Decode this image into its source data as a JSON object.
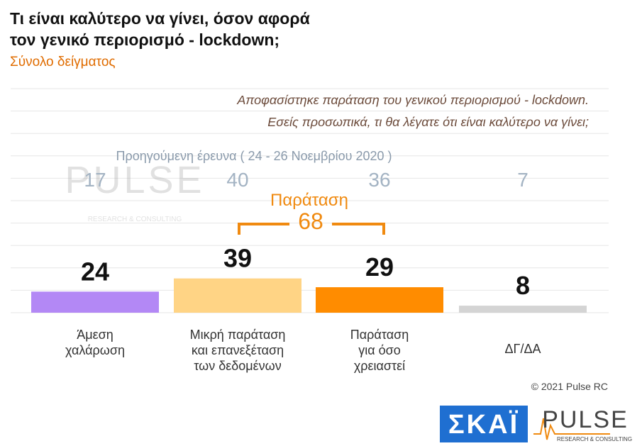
{
  "chart_data": {
    "type": "bar",
    "title": [
      "Τι είναι καλύτερο να γίνει, όσον αφορά",
      "τον γενικό περιορισμό - lockdown;"
    ],
    "subtitle": "Σύνολο δείγματος",
    "question": [
      "Αποφασίστηκε παράταση του γενικού περιορισμού - lockdown.",
      "Εσείς προσωπικά, τι θα λέγατε ότι είναι καλύτερο να γίνει;"
    ],
    "categories": [
      "Άμεση\nχαλάρωση",
      "Μικρή παράταση\nκαι επανεξέταση\nτων δεδομένων",
      "Παράταση\nγια όσο\nχρειαστεί",
      "ΔΓ/ΔΑ"
    ],
    "values": [
      24,
      39,
      29,
      8
    ],
    "colors": [
      "#b388f5",
      "#ffd485",
      "#ff8c00",
      "#d4d4d4"
    ],
    "ylim": [
      0,
      255
    ],
    "previous_label": "Προηγούμενη έρευνα  ( 24 - 26  Νοεμβρίου  2020 )",
    "previous_values": [
      17,
      40,
      36,
      7
    ],
    "bracket": {
      "label": "Παράταση",
      "value": 68
    },
    "copyright": "© 2021 Pulse RC",
    "logos": {
      "skai": "ΣΚΑΪ",
      "pulse": "PULSE",
      "pulse_sub": "RESEARCH & CONSULTING"
    }
  }
}
